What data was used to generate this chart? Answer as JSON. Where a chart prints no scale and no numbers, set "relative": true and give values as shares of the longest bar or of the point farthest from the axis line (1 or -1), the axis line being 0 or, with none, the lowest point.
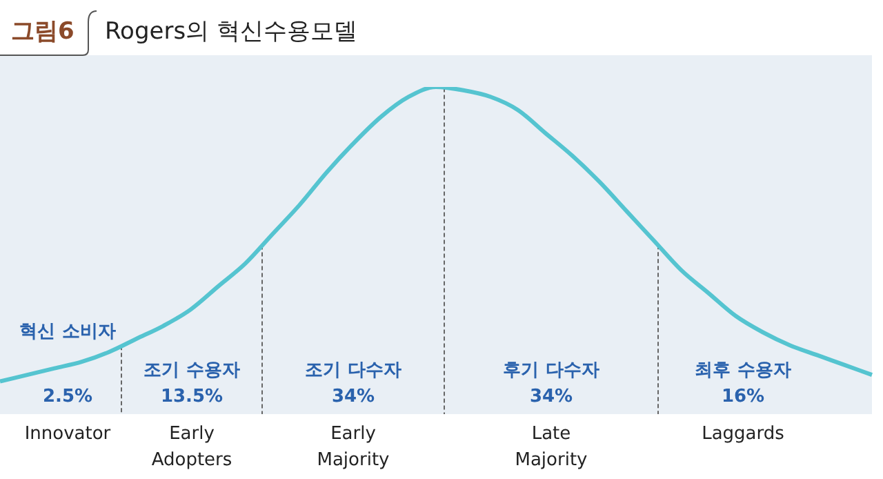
{
  "chart_data": {
    "type": "line",
    "title": "Rogers의 혁신수용모델",
    "relative": true,
    "color": "#55c4d0",
    "categories": [
      null,
      null,
      null,
      null,
      null,
      null,
      null,
      null,
      null,
      null,
      null,
      null,
      null,
      null,
      null,
      null,
      null,
      null,
      null,
      null,
      null,
      null,
      null,
      null,
      null,
      null,
      null,
      null,
      null,
      null,
      null,
      null,
      null
    ],
    "values": [
      0.1,
      0.12,
      0.14,
      0.16,
      0.19,
      0.23,
      0.27,
      0.32,
      0.39,
      0.46,
      0.55,
      0.64,
      0.74,
      0.83,
      0.91,
      0.97,
      1.0,
      0.99,
      0.97,
      0.93,
      0.86,
      0.79,
      0.71,
      0.62,
      0.53,
      0.44,
      0.37,
      0.3,
      0.25,
      0.21,
      0.18,
      0.15,
      0.12
    ],
    "annotations": [
      "그림6",
      "혁신 소비자",
      "2.5%",
      "Innovator",
      "조기 수용자",
      "13.5%",
      "Early Adopters",
      "조기 다수자",
      "34%",
      "Early Majority",
      "후기 다수자",
      "34%",
      "Late Majority",
      "최후 수용자",
      "16%",
      "Laggards"
    ]
  }
}
